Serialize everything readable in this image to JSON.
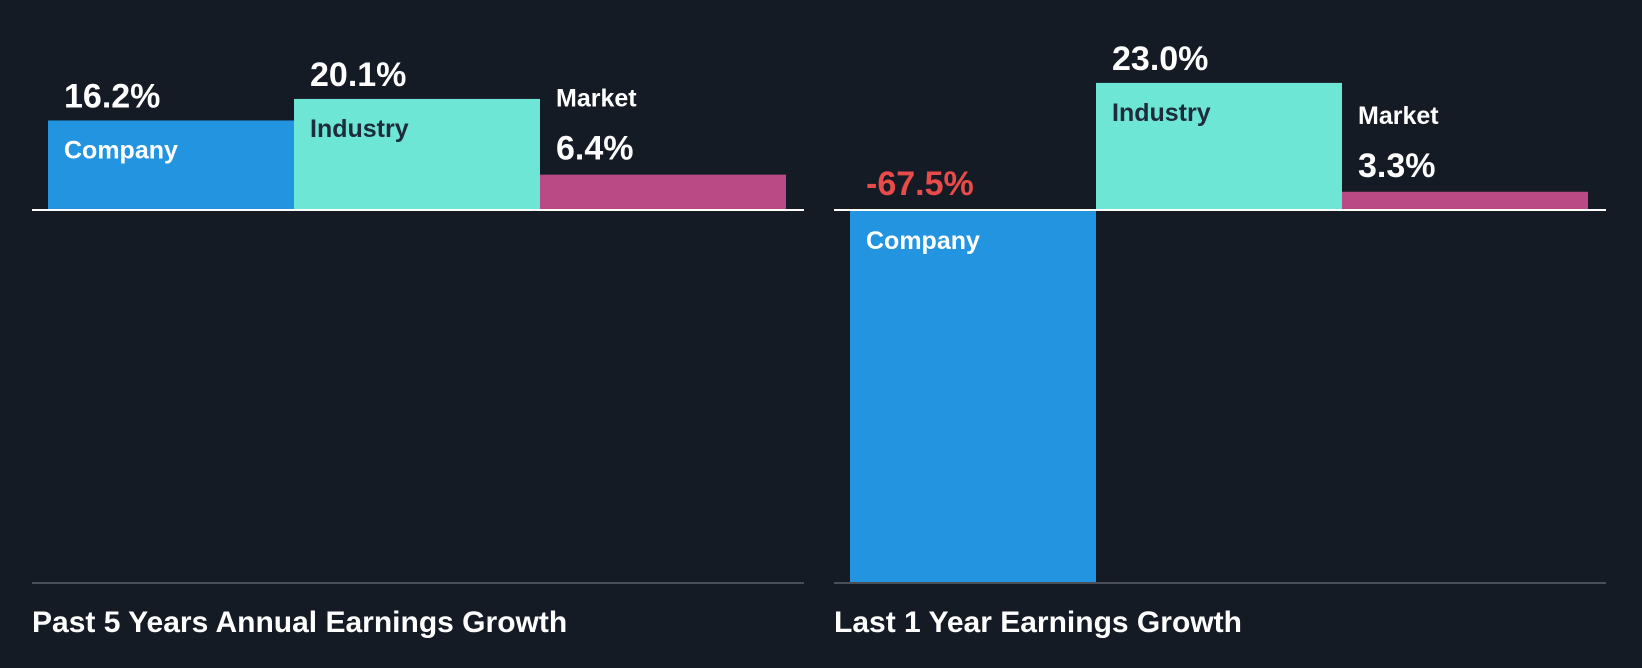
{
  "colors": {
    "background": "#151b24",
    "company": "#2394e0",
    "industry": "#6de6d6",
    "market": "#b94a86",
    "negative_text": "#e94a4a",
    "positive_text": "#ffffff",
    "label_on_light": "#1d2b3a",
    "zero_line": "#ffffff",
    "bottom_rule": "#4a4f57"
  },
  "chart_data": [
    {
      "type": "bar",
      "title": "Past 5 Years Annual Earnings Growth",
      "categories": [
        "Company",
        "Industry",
        "Market"
      ],
      "values": [
        16.2,
        20.1,
        6.4
      ],
      "value_labels": [
        "16.2%",
        "20.1%",
        "6.4%"
      ],
      "unit": "%",
      "ylim": [
        -67.5,
        23.0
      ],
      "grid": false,
      "legend": "none"
    },
    {
      "type": "bar",
      "title": "Last 1 Year Earnings Growth",
      "categories": [
        "Company",
        "Industry",
        "Market"
      ],
      "values": [
        -67.5,
        23.0,
        3.3
      ],
      "value_labels": [
        "-67.5%",
        "23.0%",
        "3.3%"
      ],
      "unit": "%",
      "ylim": [
        -67.5,
        23.0
      ],
      "grid": false,
      "legend": "none"
    }
  ]
}
